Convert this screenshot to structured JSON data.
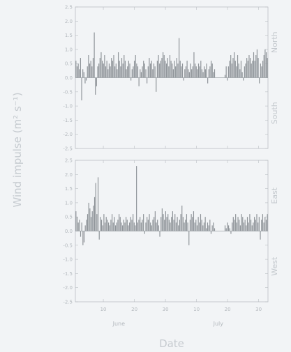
{
  "chart_data": [
    {
      "type": "bar",
      "panel": "north-south",
      "ylabel": "Wind impulse (m² s⁻¹)",
      "xlabel": "Date",
      "ylim": [
        -2.5,
        2.5
      ],
      "y_ticks": [
        "2.5",
        "2.0",
        "1.5",
        "1.0",
        "0.5",
        "0.0",
        "-0.5",
        "-1.0",
        "-1.5",
        "-2.0",
        "-2.5"
      ],
      "positive_label": "North",
      "negative_label": "South",
      "x_range_days": [
        0,
        62
      ],
      "gap_days": [
        45,
        48
      ],
      "values": [
        0.6,
        0.4,
        0.5,
        0.3,
        0.7,
        -0.8,
        0.3,
        0.2,
        -0.2,
        -0.1,
        0.4,
        0.8,
        0.5,
        0.6,
        0.4,
        0.7,
        1.6,
        -0.6,
        -0.3,
        0.4,
        0.5,
        0.7,
        0.9,
        0.6,
        0.5,
        0.8,
        0.4,
        0.6,
        0.3,
        0.5,
        0.4,
        0.7,
        0.6,
        0.8,
        0.4,
        0.5,
        0.3,
        0.9,
        0.6,
        0.4,
        0.7,
        0.5,
        0.8,
        0.6,
        0.3,
        0.4,
        0.6,
        0.5,
        -0.1,
        0.3,
        0.4,
        0.6,
        0.8,
        0.5,
        0.4,
        -0.3,
        0.3,
        0.2,
        0.4,
        0.6,
        0.5,
        0.3,
        -0.2,
        0.4,
        0.7,
        0.5,
        0.6,
        0.3,
        0.5,
        0.4,
        -0.5,
        0.6,
        0.8,
        0.5,
        0.6,
        0.7,
        0.9,
        0.8,
        0.6,
        0.5,
        0.7,
        0.4,
        0.8,
        0.6,
        0.5,
        0.3,
        0.6,
        0.4,
        0.7,
        0.5,
        1.4,
        0.6,
        0.4,
        0.5,
        -0.1,
        0.3,
        0.4,
        0.6,
        0.3,
        0.2,
        0.5,
        0.3,
        0.4,
        0.9,
        0.5,
        0.4,
        0.3,
        0.5,
        0.4,
        0.6,
        0.3,
        0.2,
        0.4,
        0.3,
        0.5,
        -0.2,
        0.3,
        0.4,
        0.6,
        0.5,
        0.2,
        0.3,
        0.1,
        0.4,
        -0.1,
        0.4,
        0.6,
        0.8,
        0.5,
        0.7,
        0.9,
        0.6,
        0.4,
        0.8,
        0.5,
        0.3,
        0.6,
        0.2,
        -0.1,
        0.4,
        0.5,
        0.7,
        0.6,
        0.8,
        0.7,
        0.5,
        0.6,
        0.9,
        0.6,
        0.8,
        1.0,
        0.7,
        -0.2,
        0.5,
        0.4,
        0.6,
        0.8,
        1.0,
        0.9,
        0.7
      ]
    },
    {
      "type": "bar",
      "panel": "east-west",
      "ylabel": "Wind impulse (m² s⁻¹)",
      "xlabel": "Date",
      "ylim": [
        -2.5,
        2.5
      ],
      "y_ticks": [
        "2.5",
        "2.0",
        "1.5",
        "1.0",
        "0.5",
        "0.0",
        "-0.5",
        "-1.0",
        "-1.5",
        "-2.0",
        "-2.5"
      ],
      "positive_label": "East",
      "negative_label": "West",
      "x_range_days": [
        0,
        62
      ],
      "gap_days": [
        45,
        48
      ],
      "values": [
        0.7,
        0.5,
        0.3,
        0.4,
        -0.2,
        0.3,
        -0.5,
        -0.4,
        0.2,
        0.4,
        0.6,
        1.0,
        0.8,
        0.5,
        0.7,
        0.9,
        1.2,
        1.7,
        0.6,
        1.9,
        -0.3,
        0.5,
        0.4,
        0.2,
        0.6,
        0.3,
        0.5,
        0.4,
        0.3,
        0.2,
        0.4,
        0.6,
        0.3,
        0.5,
        0.2,
        0.3,
        0.4,
        0.6,
        0.5,
        0.3,
        0.2,
        0.4,
        0.3,
        0.5,
        0.4,
        0.2,
        0.3,
        0.5,
        0.4,
        0.6,
        0.3,
        0.2,
        2.3,
        0.3,
        0.4,
        0.5,
        0.3,
        0.4,
        0.6,
        -0.1,
        0.3,
        0.5,
        0.4,
        0.6,
        0.3,
        0.2,
        0.4,
        0.5,
        0.7,
        0.3,
        0.4,
        0.2,
        -0.2,
        0.5,
        0.8,
        0.6,
        0.4,
        0.7,
        0.5,
        0.6,
        0.4,
        0.3,
        0.5,
        0.7,
        0.4,
        0.6,
        0.3,
        0.5,
        0.2,
        0.4,
        0.6,
        0.9,
        0.5,
        0.3,
        0.4,
        0.6,
        0.3,
        -0.5,
        0.4,
        0.6,
        0.5,
        0.7,
        0.3,
        0.4,
        0.2,
        0.5,
        0.3,
        0.6,
        0.4,
        0.2,
        0.3,
        0.5,
        0.1,
        0.3,
        0.2,
        0.4,
        -0.1,
        0.2,
        0.3,
        0.1,
        0.2,
        0.1,
        0.3,
        0.2,
        0.1,
        -0.1,
        0.3,
        0.5,
        0.4,
        0.6,
        0.3,
        0.5,
        0.4,
        0.2,
        0.6,
        0.5,
        0.3,
        0.4,
        0.2,
        0.5,
        0.3,
        0.6,
        0.4,
        0.2,
        0.3,
        0.5,
        0.4,
        0.6,
        0.3,
        0.5,
        -0.3,
        0.4,
        0.6,
        0.3,
        0.5,
        0.4,
        0.6
      ]
    }
  ],
  "x_axis": {
    "day_ticks": [
      {
        "label": "10",
        "day": 9
      },
      {
        "label": "20",
        "day": 19
      },
      {
        "label": "30",
        "day": 29
      },
      {
        "label": "10",
        "day": 39
      },
      {
        "label": "20",
        "day": 49
      },
      {
        "label": "30",
        "day": 59
      }
    ],
    "months": [
      {
        "label": "June",
        "day": 14
      },
      {
        "label": "July",
        "day": 46
      }
    ]
  },
  "colors": {
    "background": "#f2f4f6",
    "bars": "#8f9499",
    "frame": "#b9bec3",
    "text": "#b3b8bd"
  }
}
